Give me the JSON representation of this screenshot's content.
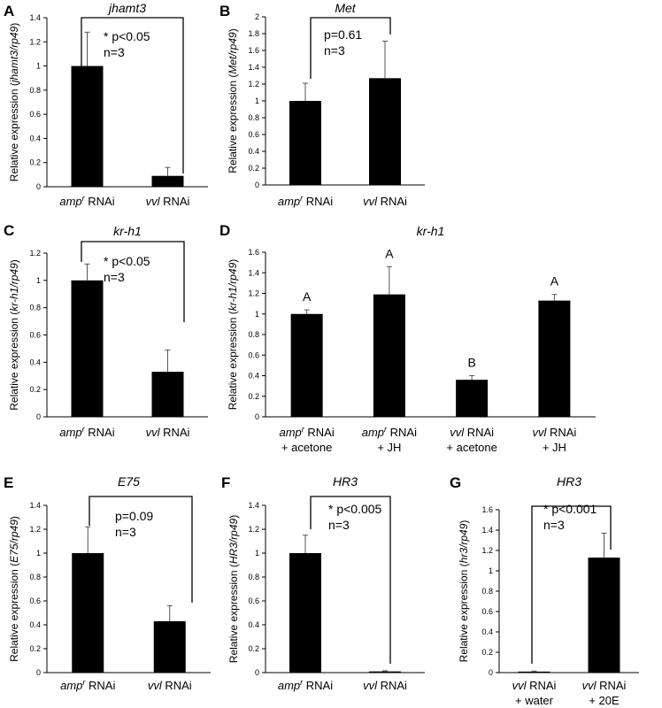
{
  "chart_data": [
    {
      "type": "bar",
      "panel_letter": "A",
      "title": "jhamt3",
      "ylabel": {
        "text": "Relative expression (",
        "italic": "jhamt3/rp49",
        "suffix": ")"
      },
      "ylim": [
        0,
        1.4
      ],
      "ytick_labels": [
        "0",
        "0.2",
        "0.4",
        "0.6",
        "0.8",
        "1",
        "1.2",
        "1.4"
      ],
      "categories": [
        {
          "lines": [
            {
              "italic": "amp",
              "sup": "r",
              "text": " RNAi"
            }
          ]
        },
        {
          "lines": [
            {
              "italic": "vvl",
              "text": " RNAi"
            }
          ]
        }
      ],
      "values": [
        1.0,
        0.09
      ],
      "errors": [
        0.28,
        0.07
      ],
      "annotation": [
        "* p<0.05",
        "n=3"
      ]
    },
    {
      "type": "bar",
      "panel_letter": "B",
      "title": "Met",
      "ylabel": {
        "text": "Relative expression (",
        "italic": "Met/rp49",
        "suffix": ")"
      },
      "ylim": [
        0,
        2
      ],
      "ytick_labels": [
        "0",
        "0.2",
        "0.4",
        "0.6",
        "0.8",
        "1",
        "1.2",
        "1.4",
        "1.6",
        "1.8",
        "2"
      ],
      "categories": [
        {
          "lines": [
            {
              "italic": "amp",
              "sup": "r",
              "text": " RNAi"
            }
          ]
        },
        {
          "lines": [
            {
              "italic": "vvl",
              "text": " RNAi"
            }
          ]
        }
      ],
      "values": [
        1.0,
        1.27
      ],
      "errors": [
        0.21,
        0.44
      ],
      "annotation": [
        "p=0.61",
        "n=3"
      ]
    },
    {
      "type": "bar",
      "panel_letter": "C",
      "title": "kr-h1",
      "ylabel": {
        "text": "Relative expression (",
        "italic": "kr-h1/rp49",
        "suffix": ")"
      },
      "ylim": [
        0,
        1.2
      ],
      "ytick_labels": [
        "0",
        "0.2",
        "0.4",
        "0.6",
        "0.8",
        "1",
        "1.2"
      ],
      "categories": [
        {
          "lines": [
            {
              "italic": "amp",
              "sup": "r",
              "text": " RNAi"
            }
          ]
        },
        {
          "lines": [
            {
              "italic": "vvl",
              "text": " RNAi"
            }
          ]
        }
      ],
      "values": [
        1.0,
        0.33
      ],
      "errors": [
        0.12,
        0.16
      ],
      "annotation": [
        "* p<0.05",
        "n=3"
      ]
    },
    {
      "type": "bar",
      "panel_letter": "D",
      "title": "kr-h1",
      "ylabel": {
        "text": "Relative expression (",
        "italic": "kr-h1/rp49",
        "suffix": ")"
      },
      "ylim": [
        0,
        1.6
      ],
      "ytick_labels": [
        "0",
        "0.2",
        "0.4",
        "0.6",
        "0.8",
        "1",
        "1.2",
        "1.4",
        "1.6"
      ],
      "categories": [
        {
          "lines": [
            {
              "italic": "amp",
              "sup": "r",
              "text": " RNAi"
            },
            {
              "text": "+ acetone"
            }
          ]
        },
        {
          "lines": [
            {
              "italic": "amp",
              "sup": "r",
              "text": " RNAi"
            },
            {
              "text": "+ JH"
            }
          ]
        },
        {
          "lines": [
            {
              "italic": "vvl",
              "text": " RNAi"
            },
            {
              "text": "+ acetone"
            }
          ]
        },
        {
          "lines": [
            {
              "italic": "vvl",
              "text": " RNAi"
            },
            {
              "text": "+ JH"
            }
          ]
        }
      ],
      "values": [
        1.0,
        1.19,
        0.36,
        1.13
      ],
      "errors": [
        0.04,
        0.27,
        0.04,
        0.06
      ],
      "group_labels": [
        "A",
        "A",
        "B",
        "A"
      ]
    },
    {
      "type": "bar",
      "panel_letter": "E",
      "title": "E75",
      "ylabel": {
        "text": "Relative expression (",
        "italic": "E75/rp49",
        "suffix": ")"
      },
      "ylim": [
        0,
        1.4
      ],
      "ytick_labels": [
        "0",
        "0.2",
        "0.4",
        "0.6",
        "0.8",
        "1",
        "1.2",
        "1.4"
      ],
      "categories": [
        {
          "lines": [
            {
              "italic": "amp",
              "sup": "r",
              "text": " RNAi"
            }
          ]
        },
        {
          "lines": [
            {
              "italic": "vvl",
              "text": " RNAi"
            }
          ]
        }
      ],
      "values": [
        1.0,
        0.43
      ],
      "errors": [
        0.22,
        0.13
      ],
      "annotation": [
        "p=0.09",
        "n=3"
      ]
    },
    {
      "type": "bar",
      "panel_letter": "F",
      "title": "HR3",
      "ylabel": {
        "text": "Relative expression (",
        "italic": "HR3/rp49",
        "suffix": ")"
      },
      "ylim": [
        0,
        1.4
      ],
      "ytick_labels": [
        "0",
        "0.2",
        "0.4",
        "0.6",
        "0.8",
        "1",
        "1.2",
        "1.4"
      ],
      "categories": [
        {
          "lines": [
            {
              "italic": "amp",
              "sup": "r",
              "text": " RNAi"
            }
          ]
        },
        {
          "lines": [
            {
              "italic": "vvl",
              "text": " RNAi"
            }
          ]
        }
      ],
      "values": [
        1.0,
        0.01
      ],
      "errors": [
        0.15,
        0.005
      ],
      "annotation": [
        "* p<0.005",
        "n=3"
      ]
    },
    {
      "type": "bar",
      "panel_letter": "G",
      "title": "HR3",
      "ylabel": {
        "text": "Relative expression (",
        "italic": "hr3/rp49",
        "suffix": ")"
      },
      "ylim": [
        0,
        1.6
      ],
      "ytick_labels": [
        "0",
        "0.2",
        "0.4",
        "0.6",
        "0.8",
        "1",
        "1.2",
        "1.4",
        "1.6"
      ],
      "categories": [
        {
          "lines": [
            {
              "italic": "vvl",
              "text": " RNAi"
            },
            {
              "text": "+ water"
            }
          ]
        },
        {
          "lines": [
            {
              "italic": "vvl",
              "text": " RNAi"
            },
            {
              "text": "+ 20E"
            }
          ]
        }
      ],
      "values": [
        0.01,
        1.13
      ],
      "errors": [
        0.005,
        0.24
      ],
      "annotation": [
        "* p<0.001",
        "n=3"
      ]
    }
  ]
}
